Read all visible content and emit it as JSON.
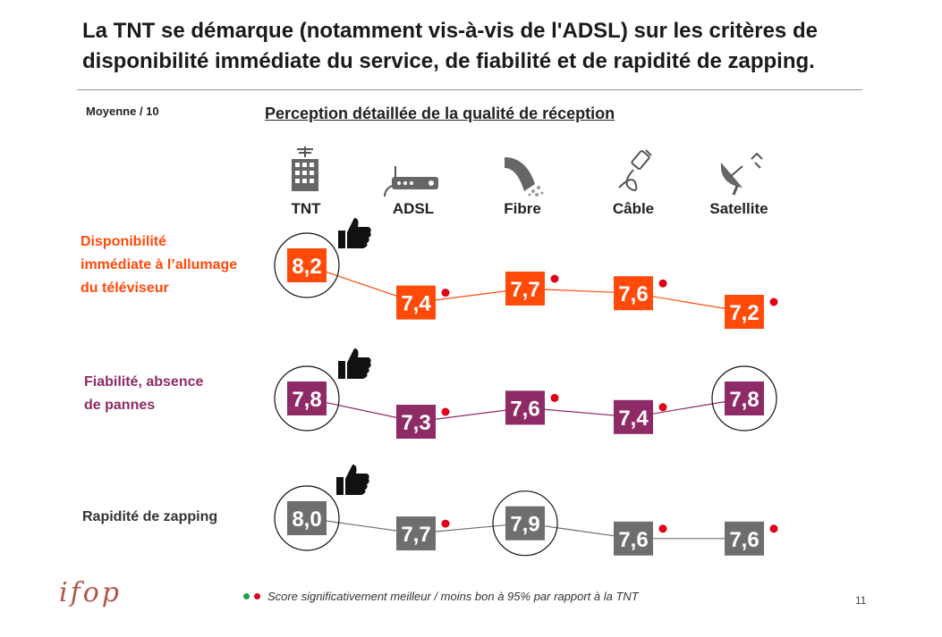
{
  "title": "La TNT se démarque (notamment vis-à-vis de l'ADSL) sur les critères de disponibilité immédiate du service, de fiabilité et de rapidité de zapping.",
  "subtitle": "Moyenne / 10",
  "footer_note": "Score significativement meilleur / moins bon à 95% par rapport à la TNT",
  "page_number": "11",
  "logo": "ifop",
  "icons": [
    "building-antenna-icon",
    "router-icon",
    "fiber-cable-icon",
    "coax-cable-icon",
    "satellite-dish-icon",
    "thumbs-up-icon"
  ],
  "colors": {
    "dispo": "#ff4a0a",
    "fiab": "#8e2a66",
    "rapid": "#6e6e6e",
    "better": "#1aa34a",
    "worse": "#e0001a"
  },
  "chart_data": {
    "type": "line",
    "title": "Perception détaillée de la qualité de réception",
    "ylabel": "Moyenne / 10",
    "categories": [
      "TNT",
      "ADSL",
      "Fibre",
      "Câble",
      "Satellite"
    ],
    "series": [
      {
        "name": "Disponibilité immédiate à l’allumage du téléviseur",
        "label_lines": [
          "Disponibilité",
          "immédiate à l’allumage",
          "du téléviseur"
        ],
        "values": [
          8.2,
          7.4,
          7.7,
          7.6,
          7.2
        ],
        "labels": [
          "8,2",
          "7,4",
          "7,7",
          "7,6",
          "7,2"
        ],
        "significance": [
          null,
          "worse",
          "worse",
          "worse",
          "worse"
        ],
        "circled": [
          true,
          false,
          false,
          false,
          false
        ],
        "color_key": "dispo"
      },
      {
        "name": "Fiabilité, absence de pannes",
        "label_lines": [
          "Fiabilité, absence",
          "de pannes"
        ],
        "values": [
          7.8,
          7.3,
          7.6,
          7.4,
          7.8
        ],
        "labels": [
          "7,8",
          "7,3",
          "7,6",
          "7,4",
          "7,8"
        ],
        "significance": [
          null,
          "worse",
          "worse",
          "worse",
          null
        ],
        "circled": [
          true,
          false,
          false,
          false,
          true
        ],
        "color_key": "fiab"
      },
      {
        "name": "Rapidité de zapping",
        "label_lines": [
          "Rapidité de zapping"
        ],
        "values": [
          8.0,
          7.7,
          7.9,
          7.6,
          7.6
        ],
        "labels": [
          "8,0",
          "7,7",
          "7,9",
          "7,6",
          "7,6"
        ],
        "significance": [
          null,
          "worse",
          null,
          "worse",
          "worse"
        ],
        "circled": [
          true,
          false,
          true,
          false,
          false
        ],
        "color_key": "rapid"
      }
    ]
  }
}
